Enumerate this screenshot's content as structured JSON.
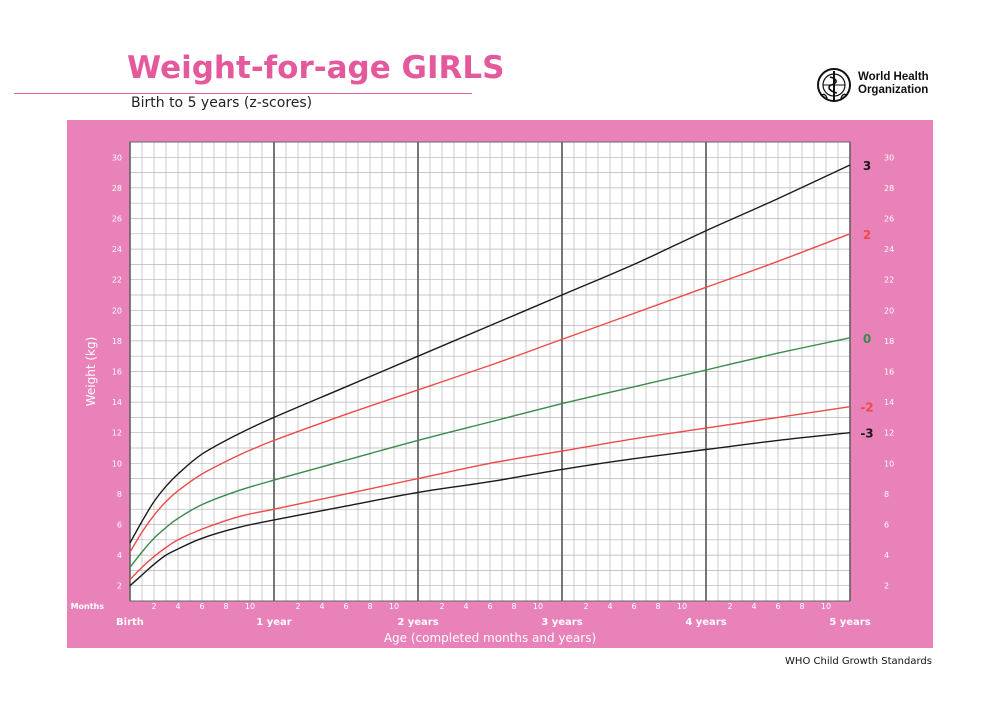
{
  "header": {
    "title": "Weight-for-age GIRLS",
    "subtitle": "Birth to 5 years (z-scores)"
  },
  "logo": {
    "org_line1": "World Health",
    "org_line2": "Organization",
    "icon": "who-emblem-icon"
  },
  "footer": {
    "text": "WHO Child Growth Standards"
  },
  "colors": {
    "title_pink": "#e4589c",
    "panel_pink": "#e882b8",
    "z3": "#1a1a1a",
    "z2": "#ef4a4a",
    "z0": "#3a8a4a"
  },
  "chart_data": {
    "type": "line",
    "xlabel": "Age (completed months and years)",
    "ylabel": "Weight (kg)",
    "x_months_label": "Months",
    "xlim": [
      0,
      60
    ],
    "ylim": [
      1,
      31
    ],
    "y_ticks": [
      2,
      4,
      6,
      8,
      10,
      12,
      14,
      16,
      18,
      20,
      22,
      24,
      26,
      28,
      30
    ],
    "x_minor_labels": [
      "2",
      "4",
      "6",
      "8",
      "10"
    ],
    "year_labels": [
      {
        "month": 0,
        "label": "Birth"
      },
      {
        "month": 12,
        "label": "1 year"
      },
      {
        "month": 24,
        "label": "2 years"
      },
      {
        "month": 36,
        "label": "3 years"
      },
      {
        "month": 48,
        "label": "4 years"
      },
      {
        "month": 60,
        "label": "5 years"
      }
    ],
    "grid": true,
    "x": [
      0,
      1,
      2,
      3,
      4,
      6,
      9,
      12,
      18,
      24,
      30,
      36,
      42,
      48,
      54,
      60
    ],
    "series": [
      {
        "name": "3",
        "color": "#1a1a1a",
        "values": [
          4.8,
          6.2,
          7.5,
          8.5,
          9.3,
          10.6,
          11.9,
          13.0,
          15.0,
          17.0,
          19.0,
          21.0,
          23.0,
          25.2,
          27.3,
          29.5
        ]
      },
      {
        "name": "2",
        "color": "#ef4a4a",
        "values": [
          4.2,
          5.5,
          6.6,
          7.5,
          8.2,
          9.3,
          10.5,
          11.5,
          13.2,
          14.8,
          16.4,
          18.1,
          19.8,
          21.5,
          23.2,
          25.0
        ]
      },
      {
        "name": "0",
        "color": "#3a8a4a",
        "values": [
          3.2,
          4.2,
          5.1,
          5.8,
          6.4,
          7.3,
          8.2,
          8.9,
          10.2,
          11.5,
          12.7,
          13.9,
          15.0,
          16.1,
          17.2,
          18.2
        ]
      },
      {
        "name": "-2",
        "color": "#ef4a4a",
        "values": [
          2.4,
          3.2,
          3.9,
          4.5,
          5.0,
          5.7,
          6.5,
          7.0,
          8.0,
          9.0,
          10.0,
          10.8,
          11.6,
          12.3,
          13.0,
          13.7
        ]
      },
      {
        "name": "-3",
        "color": "#1a1a1a",
        "values": [
          2.0,
          2.7,
          3.4,
          4.0,
          4.4,
          5.1,
          5.8,
          6.3,
          7.2,
          8.1,
          8.8,
          9.6,
          10.3,
          10.9,
          11.5,
          12.0
        ]
      }
    ]
  }
}
